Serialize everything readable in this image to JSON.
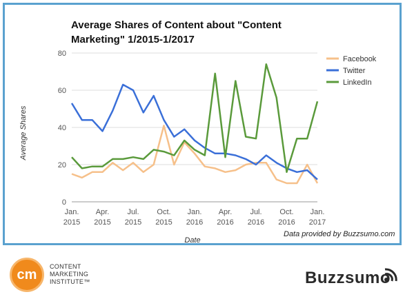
{
  "chart_data": {
    "type": "line",
    "title_lines": [
      "Average Shares of Content about \"Content",
      "Marketing\" 1/2015-1/2017"
    ],
    "xlabel": "Date",
    "ylabel": "Average Shares",
    "ylim": [
      0,
      80
    ],
    "yticks": [
      0,
      20,
      40,
      60,
      80
    ],
    "x_tick_labels": [
      {
        "index": 0,
        "month": "Jan.",
        "year": "2015"
      },
      {
        "index": 3,
        "month": "Apr.",
        "year": "2015"
      },
      {
        "index": 6,
        "month": "Jul.",
        "year": "2015"
      },
      {
        "index": 9,
        "month": "Oct.",
        "year": "2015"
      },
      {
        "index": 12,
        "month": "Jan.",
        "year": "2016"
      },
      {
        "index": 15,
        "month": "Apr.",
        "year": "2016"
      },
      {
        "index": 18,
        "month": "Jul.",
        "year": "2016"
      },
      {
        "index": 21,
        "month": "Oct.",
        "year": "2016"
      },
      {
        "index": 24,
        "month": "Jan.",
        "year": "2017"
      }
    ],
    "x": [
      "Jan. 2015",
      "Feb. 2015",
      "Mar. 2015",
      "Apr. 2015",
      "May 2015",
      "Jun. 2015",
      "Jul. 2015",
      "Aug. 2015",
      "Sep. 2015",
      "Oct. 2015",
      "Nov. 2015",
      "Dec. 2015",
      "Jan. 2016",
      "Feb. 2016",
      "Mar. 2016",
      "Apr. 2016",
      "May 2016",
      "Jun. 2016",
      "Jul. 2016",
      "Aug. 2016",
      "Sep. 2016",
      "Oct. 2016",
      "Nov. 2016",
      "Dec. 2016",
      "Jan. 2017"
    ],
    "series": [
      {
        "name": "Facebook",
        "color": "#f6c08a",
        "values": [
          15,
          13,
          16,
          16,
          21,
          17,
          21,
          16,
          20,
          41,
          20,
          32,
          26,
          19,
          18,
          16,
          17,
          20,
          21,
          21,
          12,
          10,
          10,
          20,
          10
        ]
      },
      {
        "name": "Twitter",
        "color": "#3a6fd8",
        "values": [
          53,
          44,
          44,
          38,
          49,
          63,
          60,
          48,
          57,
          44,
          35,
          39,
          33,
          29,
          26,
          26,
          25,
          23,
          20,
          25,
          21,
          18,
          16,
          17,
          12
        ]
      },
      {
        "name": "LinkedIn",
        "color": "#5a9a3b",
        "values": [
          24,
          18,
          19,
          19,
          23,
          23,
          24,
          23,
          28,
          27,
          25,
          33,
          28,
          25,
          69,
          24,
          65,
          35,
          34,
          74,
          56,
          16,
          34,
          34,
          54
        ]
      }
    ],
    "grid": true,
    "legend_position": "right",
    "credit": "Data provided by Buzzsumo.com"
  },
  "footer": {
    "cmi_monogram": "cm",
    "cmi_lines": [
      "CONTENT",
      "MARKETING",
      "INSTITUTE™"
    ],
    "buzzsumo_label": "Buzzsumo"
  }
}
